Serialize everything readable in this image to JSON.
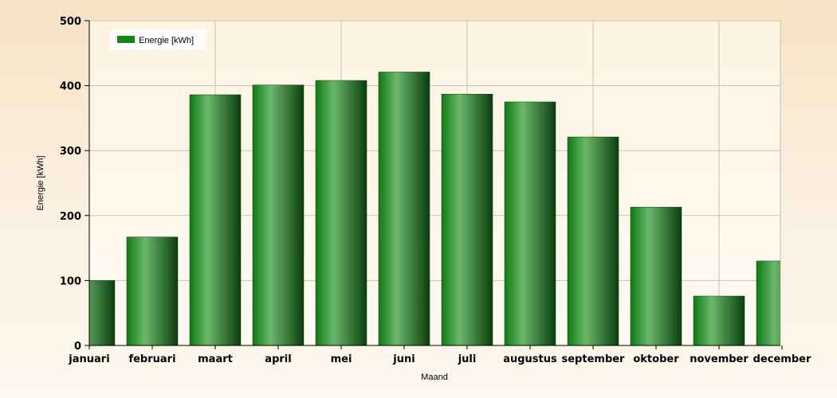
{
  "chart_data": {
    "type": "bar",
    "categories": [
      "januari",
      "februari",
      "maart",
      "april",
      "mei",
      "juni",
      "juli",
      "augustus",
      "september",
      "oktober",
      "november",
      "december"
    ],
    "series": [
      {
        "name": "Energie [kWh]",
        "values": [
          100,
          167,
          386,
          401,
          408,
          421,
          387,
          375,
          321,
          213,
          76,
          130
        ]
      }
    ],
    "xlabel": "Maand",
    "ylabel": "Energie [kWh]",
    "ylim": [
      0,
      500
    ],
    "yticks": [
      0,
      100,
      200,
      300,
      400,
      500
    ],
    "grid": true,
    "legend_position": "top-left",
    "colors": {
      "bar_dark": "#0e4a12",
      "bar_light": "#6ab86a",
      "bar_mid": "#1f8a22",
      "legend_swatch": "#118a14",
      "grid": "#c9c0b0",
      "plot_bg": "#fdf6e6"
    }
  }
}
